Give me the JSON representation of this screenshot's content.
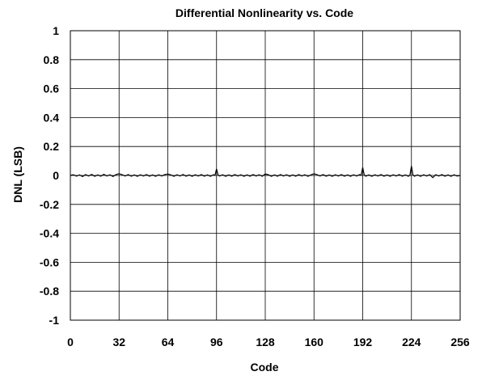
{
  "chart_data": {
    "type": "line",
    "title": "Differential Nonlinearity vs. Code",
    "xlabel": "Code",
    "ylabel": "DNL (LSB)",
    "xlim": [
      0,
      256
    ],
    "ylim": [
      -1,
      1
    ],
    "xticks": [
      "0",
      "32",
      "64",
      "96",
      "128",
      "160",
      "192",
      "224",
      "256"
    ],
    "yticks": [
      "1",
      "0.8",
      "0.6",
      "0.4",
      "0.2",
      "0",
      "-0.2",
      "-0.4",
      "-0.6",
      "-0.8",
      "-1"
    ],
    "grid": true,
    "legend": "none",
    "line_color": "#000000",
    "series": [
      {
        "x": [
          0,
          2,
          4,
          6,
          8,
          10,
          12,
          14,
          16,
          18,
          20,
          22,
          24,
          26,
          28,
          30,
          32,
          34,
          36,
          38,
          40,
          42,
          44,
          46,
          48,
          50,
          52,
          54,
          56,
          58,
          60,
          62,
          64,
          66,
          68,
          70,
          72,
          74,
          76,
          78,
          80,
          82,
          84,
          86,
          88,
          90,
          92,
          94,
          95,
          96,
          97,
          98,
          100,
          102,
          104,
          106,
          108,
          110,
          112,
          114,
          116,
          118,
          120,
          122,
          124,
          126,
          128,
          130,
          132,
          134,
          136,
          138,
          140,
          142,
          144,
          146,
          148,
          150,
          152,
          154,
          156,
          158,
          160,
          162,
          164,
          166,
          168,
          170,
          172,
          174,
          176,
          178,
          180,
          182,
          184,
          186,
          188,
          190,
          191,
          192,
          193,
          194,
          196,
          198,
          200,
          202,
          204,
          206,
          208,
          210,
          212,
          214,
          216,
          218,
          220,
          222,
          223,
          224,
          225,
          226,
          228,
          230,
          232,
          234,
          236,
          238,
          240,
          242,
          244,
          246,
          248,
          250,
          252,
          254,
          256
        ],
        "values": [
          0,
          0.005,
          -0.005,
          0.004,
          -0.008,
          0.006,
          -0.004,
          0.007,
          -0.006,
          0.004,
          -0.005,
          0.008,
          -0.004,
          0.005,
          -0.007,
          0.006,
          0.012,
          0.005,
          -0.004,
          0.006,
          -0.005,
          0.004,
          -0.006,
          0.005,
          -0.004,
          0.006,
          -0.005,
          0.004,
          -0.006,
          0.005,
          -0.004,
          0.006,
          0.01,
          0.004,
          -0.006,
          0.005,
          -0.004,
          0.007,
          -0.005,
          0.004,
          -0.006,
          0.005,
          -0.004,
          0.006,
          -0.005,
          0.004,
          -0.006,
          0.005,
          0.002,
          0.045,
          0.003,
          -0.004,
          0.005,
          -0.006,
          0.004,
          -0.005,
          0.006,
          -0.004,
          0.005,
          -0.006,
          0.004,
          -0.005,
          0.006,
          -0.004,
          0.005,
          -0.006,
          0.01,
          0.005,
          -0.006,
          0.004,
          -0.005,
          0.006,
          -0.004,
          0.005,
          -0.006,
          0.004,
          -0.005,
          0.006,
          -0.004,
          0.005,
          -0.006,
          0.004,
          0.012,
          0.005,
          -0.004,
          0.006,
          -0.005,
          0.004,
          -0.006,
          0.005,
          -0.004,
          0.006,
          -0.005,
          0.004,
          -0.006,
          0.005,
          -0.004,
          0.006,
          0.002,
          0.055,
          0.003,
          -0.005,
          0.004,
          -0.006,
          0.005,
          -0.004,
          0.006,
          -0.005,
          0.004,
          -0.006,
          0.005,
          -0.004,
          0.006,
          -0.005,
          0.004,
          -0.006,
          0.002,
          0.065,
          0.003,
          -0.005,
          0.004,
          -0.006,
          0.005,
          -0.004,
          0.006,
          -0.015,
          0.005,
          -0.004,
          0.006,
          -0.005,
          0.004,
          -0.006,
          0.005,
          -0.004,
          0
        ]
      }
    ]
  }
}
